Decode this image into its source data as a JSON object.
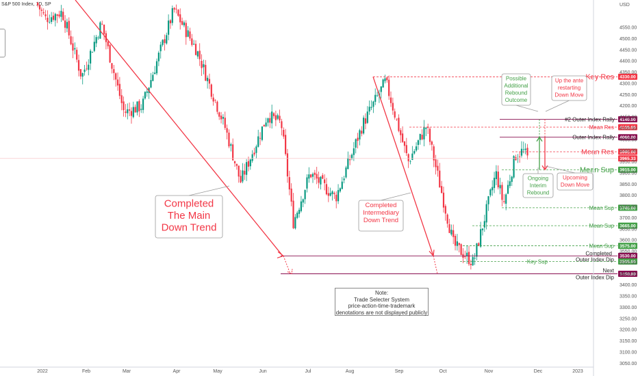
{
  "header": {
    "symbol": "S&P 500 Index, 1D, SP",
    "currency": "USD"
  },
  "note": {
    "line1": "Note:",
    "line2": "Trade Selecter System",
    "line3": "price-action-time-trademark",
    "line4": "denotations are not displayed publicly"
  },
  "chart_data": {
    "type": "candlestick",
    "instrument": "S&P 500 Index",
    "timeframe": "1D",
    "ylim": [
      3050,
      4650
    ],
    "y_ticks": [
      4550,
      4500,
      4450,
      4400,
      4350,
      4300,
      4250,
      4200,
      4150,
      4100,
      4050,
      4000,
      3950,
      3900,
      3850,
      3800,
      3750,
      3700,
      3650,
      3600,
      3550,
      3500,
      3450,
      3400,
      3350,
      3300,
      3250,
      3200,
      3150,
      3100,
      3050
    ],
    "x_ticks": [
      "2022",
      "Feb",
      "Mar",
      "Apr",
      "May",
      "Jun",
      "Jul",
      "Aug",
      "Sep",
      "Oct",
      "Nov",
      "Dec",
      "2023"
    ],
    "price_path": [
      [
        "2021-12-28",
        4660
      ],
      [
        "2022-01-03",
        4590
      ],
      [
        "2022-01-14",
        4620
      ],
      [
        "2022-01-27",
        4330
      ],
      [
        "2022-02-09",
        4570
      ],
      [
        "2022-02-24",
        4170
      ],
      [
        "2022-03-08",
        4200
      ],
      [
        "2022-03-29",
        4630
      ],
      [
        "2022-04-13",
        4450
      ],
      [
        "2022-05-02",
        4100
      ],
      [
        "2022-05-12",
        3860
      ],
      [
        "2022-05-30",
        4160
      ],
      [
        "2022-06-08",
        4120
      ],
      [
        "2022-06-16",
        3680
      ],
      [
        "2022-06-27",
        3900
      ],
      [
        "2022-07-14",
        3790
      ],
      [
        "2022-08-01",
        4120
      ],
      [
        "2022-08-16",
        4310
      ],
      [
        "2022-08-31",
        3950
      ],
      [
        "2022-09-12",
        4110
      ],
      [
        "2022-09-30",
        3580
      ],
      [
        "2022-10-13",
        3500
      ],
      [
        "2022-10-28",
        3900
      ],
      [
        "2022-11-02",
        3760
      ],
      [
        "2022-11-10",
        3980
      ],
      [
        "2022-11-15",
        4000
      ],
      [
        "2022-11-18",
        3965
      ]
    ],
    "levels": [
      {
        "name": "Key Res",
        "value": 4330
      },
      {
        "name": "#2 Outer Index Rally",
        "value": 4140
      },
      {
        "name": "Mean Res",
        "value": 4105
      },
      {
        "name": "Outer Index Rally",
        "value": 4060
      },
      {
        "name": "Mean Res",
        "value": 3995
      },
      {
        "name": "Current",
        "value": 3965.33
      },
      {
        "name": "Mean Sup",
        "value": 3915
      },
      {
        "name": "Mean Sup",
        "value": 3745
      },
      {
        "name": "Mean Sup",
        "value": 3665
      },
      {
        "name": "Mean Sup",
        "value": 3575
      },
      {
        "name": "Completed Outer Index Dip",
        "value": 3530
      },
      {
        "name": "Key Sup",
        "value": 3505
      },
      {
        "name": "Next Outer Index Dip",
        "value": 3450
      }
    ],
    "annotations": [
      "Completed The Main Down Trend",
      "Completed Intermediary Down Trend",
      "Possible Additional Rebound Outcome",
      "Up the ante restarting Down Move",
      "Ongoing Interim Rebound",
      "Upcoming Down Move"
    ]
  },
  "levels_display": {
    "key_res": {
      "label": "Key Res",
      "badge": "4330.00",
      "color": "#f23645"
    },
    "outer2": {
      "label": "#2 Outer Index Rally",
      "badge": "4140.00",
      "color": "#880e4f"
    },
    "mean_res_upper": {
      "label": "Mean Res",
      "badge": "4105.00",
      "color": "#f23645"
    },
    "outer": {
      "label": "Outer Index Rally",
      "badge": "4060.00",
      "color": "#880e4f"
    },
    "mean_res": {
      "label": "Mean Res",
      "badge": "3995.00",
      "color": "#f23645"
    },
    "last_price": {
      "badge": "3965.33",
      "color": "#f23645"
    },
    "mean_sup": {
      "label": "Mean Sup",
      "badge": "3915.00",
      "color": "#43a047"
    },
    "mean_sup_1": {
      "label": "Mean Sup",
      "badge": "3745.00",
      "color": "#43a047"
    },
    "mean_sup_2": {
      "label": "Mean Sup",
      "badge": "3665.00",
      "color": "#43a047"
    },
    "mean_sup_3": {
      "label": "Mean Sup",
      "badge": "3575.00",
      "color": "#43a047"
    },
    "completed_dip": {
      "label1": "Completed",
      "label2": "Outer Index Dip",
      "badge": "3530.00",
      "color": "#880e4f"
    },
    "key_sup": {
      "label": "Key Sup",
      "badge": "3505.00",
      "color": "#43a047"
    },
    "next_dip": {
      "label1": "Next",
      "label2": "Outer Index Dip",
      "badge": "3450.00",
      "color": "#880e4f"
    }
  },
  "callouts": {
    "main_trend": [
      "Completed",
      "The Main",
      "Down Trend"
    ],
    "intermediary": [
      "Completed",
      "Intermediary",
      "Down Trend"
    ],
    "possible": [
      "Possible",
      "Additional",
      "Rebound",
      "Outcome"
    ],
    "upante": [
      "Up the ante",
      "restarting",
      "Down Move"
    ],
    "ongoing": [
      "Ongoing",
      "Interim",
      "Rebound"
    ],
    "upcoming": [
      "Upcoming",
      "Down Move"
    ]
  },
  "colors": {
    "up": "#089981",
    "down": "#f23645",
    "support": "#43a047",
    "resistance": "#f23645",
    "outer": "#880e4f"
  }
}
